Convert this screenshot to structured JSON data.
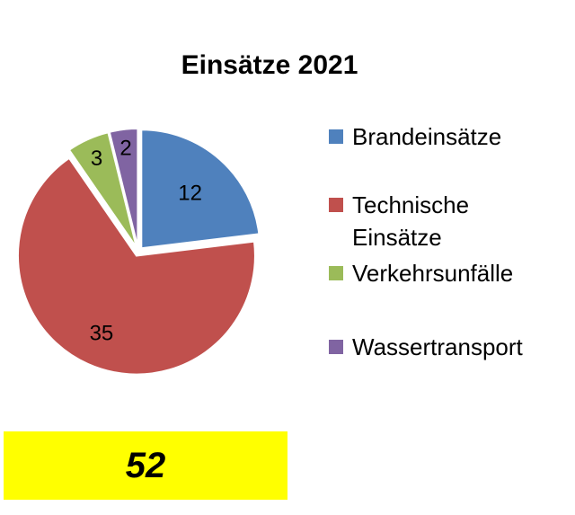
{
  "chart_data": {
    "type": "pie",
    "title": "Einsätze 2021",
    "categories": [
      "Brandeinsätze",
      "Technische Einsätze",
      "Verkehrsunfälle",
      "Wassertransport"
    ],
    "values": [
      12,
      35,
      3,
      2
    ],
    "colors": [
      "#4f81bd",
      "#c0504d",
      "#9bbb59",
      "#8064a2"
    ],
    "exploded": true,
    "start_angle_deg": 0,
    "legend_position": "right"
  },
  "legend": {
    "items": [
      {
        "label": "Brandeinsätze",
        "color": "#4f81bd"
      },
      {
        "label": "Technische\nEinsätze",
        "color": "#c0504d"
      },
      {
        "label": "Verkehrsunfälle",
        "color": "#9bbb59"
      },
      {
        "label": "Wassertransport",
        "color": "#8064a2"
      }
    ]
  },
  "total": {
    "value": "52",
    "background": "#ffff00"
  }
}
